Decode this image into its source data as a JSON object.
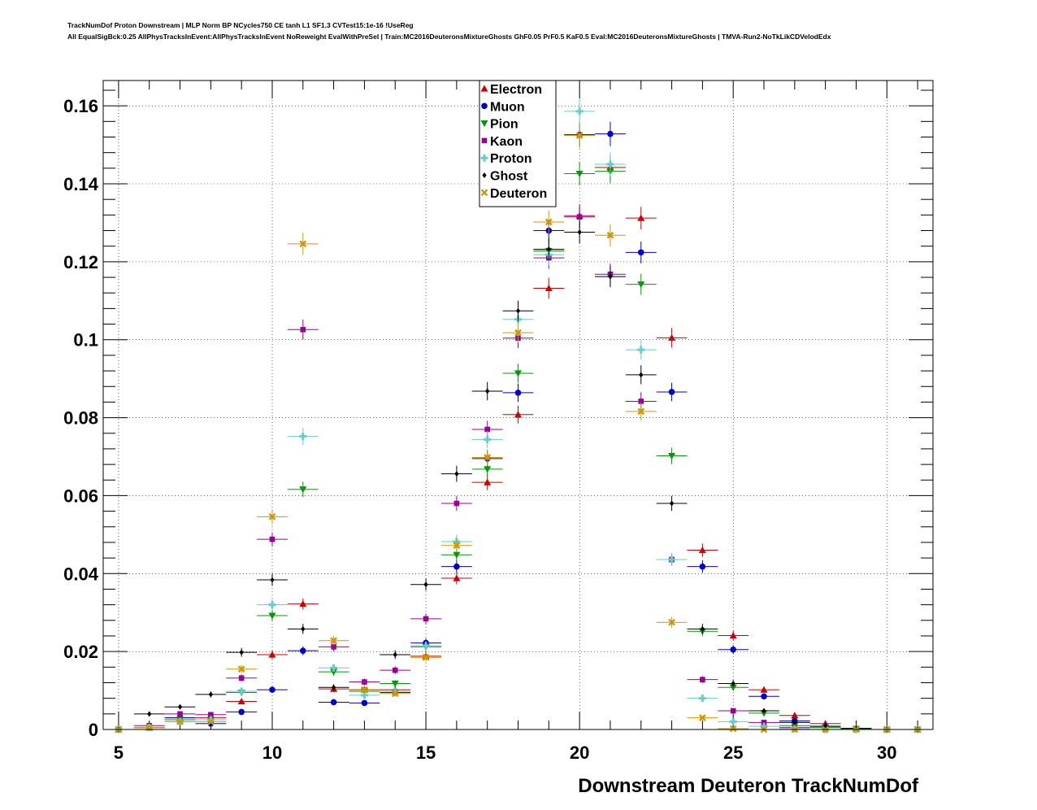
{
  "header": {
    "line1": "TrackNumDof Proton Downstream | MLP Norm BP NCycles750 CE tanh L1 SF1.3 CVTest15:1e-16 !UseReg",
    "line2": "All EqualSigBck:0.25 AllPhysTracksInEvent:AllPhysTracksInEvent NoReweight EvalWithPreSel | Train:MC2016DeuteronsMixtureGhosts GhF0.05 PrF0.5 KaF0.5 Eval:MC2016DeuteronsMixtureGhosts | TMVA-Run2-NoTkLikCDVelodEdx"
  },
  "chart_data": {
    "type": "scatter",
    "title": "",
    "xlabel": "Downstream Deuteron TrackNumDof",
    "ylabel": "",
    "xlim": [
      4.5,
      31.5
    ],
    "ylim": [
      0,
      0.1665
    ],
    "grid": true,
    "legend_position": "top-center",
    "x_ticks": [
      5,
      10,
      15,
      20,
      25,
      30
    ],
    "y_ticks": [
      0,
      0.02,
      0.04,
      0.06,
      0.08,
      0.1,
      0.12,
      0.14,
      0.16
    ],
    "y_tick_labels": [
      "0",
      "0.02",
      "0.04",
      "0.06",
      "0.08",
      "0.1",
      "0.12",
      "0.14",
      "0.16"
    ],
    "x": [
      5,
      6,
      7,
      8,
      9,
      10,
      11,
      12,
      13,
      14,
      15,
      16,
      17,
      18,
      19,
      20,
      21,
      22,
      23,
      24,
      25,
      26,
      27,
      28,
      29,
      30,
      31
    ],
    "series": [
      {
        "name": "Electron",
        "color": "#cc0000",
        "marker": "triangle-up",
        "values": [
          0.0,
          0.0005,
          0.003,
          0.003,
          0.0072,
          0.0192,
          0.0322,
          0.0104,
          0.0102,
          0.0102,
          0.0188,
          0.0388,
          0.0634,
          0.0808,
          0.1132,
          0.1318,
          0.1442,
          0.1312,
          0.1005,
          0.046,
          0.0241,
          0.0102,
          0.0036,
          0.0015,
          0.0003,
          0.0,
          0.0
        ]
      },
      {
        "name": "Muon",
        "color": "#0000cc",
        "marker": "circle",
        "values": [
          0.0,
          0.0005,
          0.003,
          0.0015,
          0.0045,
          0.0102,
          0.0202,
          0.007,
          0.0068,
          0.0095,
          0.0222,
          0.0418,
          0.0695,
          0.0864,
          0.128,
          0.1526,
          0.1528,
          0.1224,
          0.0866,
          0.0418,
          0.0205,
          0.0085,
          0.0022,
          0.0008,
          0.0002,
          0.0,
          0.0
        ]
      },
      {
        "name": "Pion",
        "color": "#009900",
        "marker": "triangle-down",
        "values": [
          0.0,
          0.0005,
          0.0025,
          0.0025,
          0.0095,
          0.0292,
          0.0616,
          0.0148,
          0.0098,
          0.0118,
          0.0212,
          0.0448,
          0.0668,
          0.0914,
          0.1228,
          0.1426,
          0.1432,
          0.1142,
          0.0702,
          0.0252,
          0.0108,
          0.0042,
          0.001,
          0.0005,
          0.0002,
          0.0,
          0.0
        ]
      },
      {
        "name": "Kaon",
        "color": "#990099",
        "marker": "square",
        "values": [
          0.0,
          0.001,
          0.004,
          0.0038,
          0.0132,
          0.0488,
          0.1026,
          0.0212,
          0.0122,
          0.0152,
          0.0284,
          0.058,
          0.077,
          0.1004,
          0.121,
          0.1315,
          0.1168,
          0.0842,
          0.0436,
          0.0128,
          0.0048,
          0.0018,
          0.0005,
          0.0,
          0.0,
          0.0,
          0.0
        ]
      },
      {
        "name": "Proton",
        "color": "#66cccc",
        "marker": "cross",
        "values": [
          0.0,
          0.0005,
          0.002,
          0.0025,
          0.0098,
          0.032,
          0.0752,
          0.0158,
          0.0088,
          0.0098,
          0.0215,
          0.0482,
          0.0744,
          0.1052,
          0.1218,
          0.1586,
          0.145,
          0.0974,
          0.0436,
          0.008,
          0.002,
          0.0008,
          0.0002,
          0.0,
          0.0,
          0.0,
          0.0
        ]
      },
      {
        "name": "Ghost",
        "color": "#000000",
        "marker": "diamond",
        "values": [
          0.0,
          0.004,
          0.0058,
          0.009,
          0.0198,
          0.0384,
          0.0258,
          0.0108,
          0.0102,
          0.0192,
          0.0372,
          0.0656,
          0.0868,
          0.1074,
          0.1232,
          0.1276,
          0.1162,
          0.091,
          0.058,
          0.0258,
          0.0118,
          0.0048,
          0.0018,
          0.0008,
          0.0003,
          0.0,
          0.0
        ]
      },
      {
        "name": "Deuteron",
        "color": "#cc9900",
        "marker": "x",
        "values": [
          0.0,
          0.0005,
          0.002,
          0.002,
          0.0155,
          0.0546,
          0.1246,
          0.0228,
          0.0102,
          0.0092,
          0.0185,
          0.0472,
          0.0698,
          0.1018,
          0.1302,
          0.1524,
          0.1268,
          0.0816,
          0.0275,
          0.003,
          0.0002,
          0.0,
          0.0,
          0.0,
          0.0,
          0.0,
          0.0
        ]
      }
    ]
  }
}
